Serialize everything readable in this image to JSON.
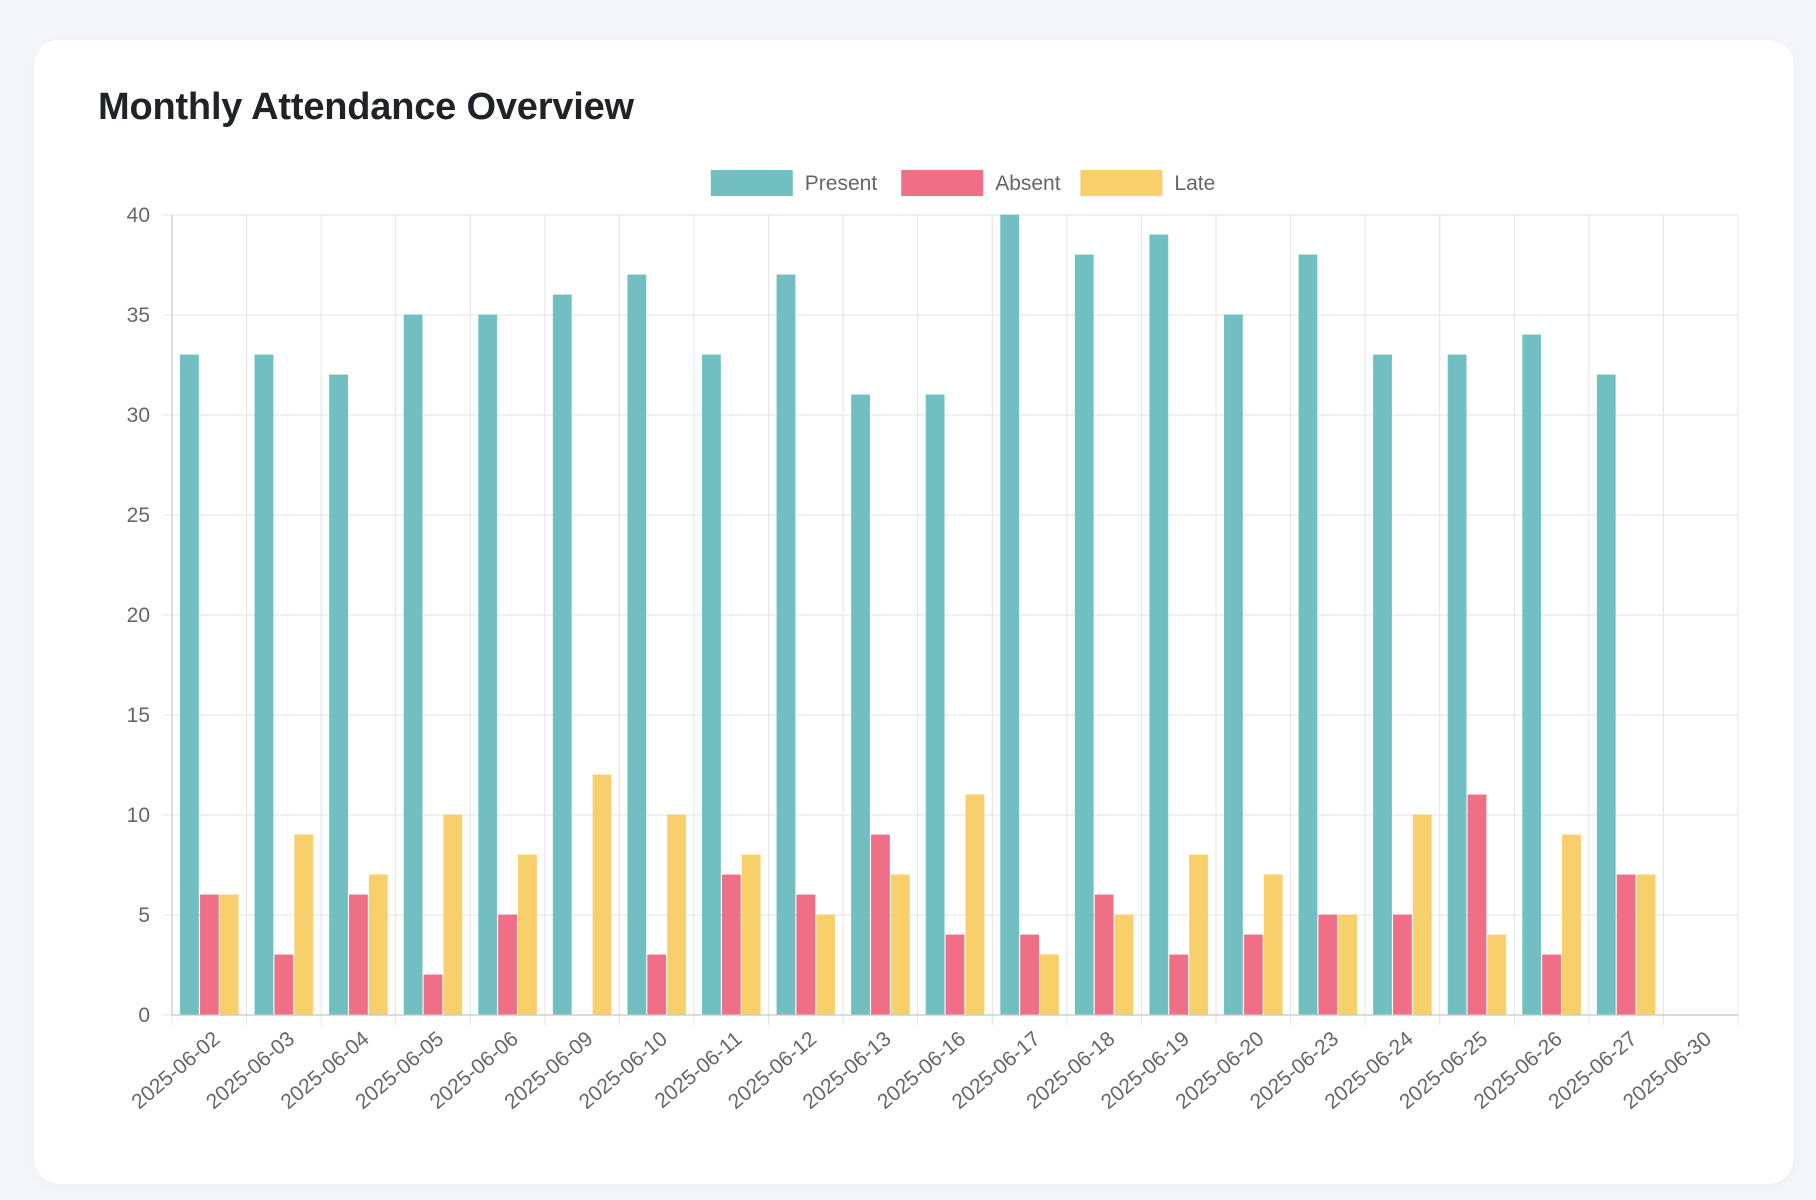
{
  "card": {
    "title": "Monthly Attendance Overview"
  },
  "chart_data": {
    "type": "bar",
    "title": "Monthly Attendance Overview",
    "categories": [
      "2025-06-02",
      "2025-06-03",
      "2025-06-04",
      "2025-06-05",
      "2025-06-06",
      "2025-06-09",
      "2025-06-10",
      "2025-06-11",
      "2025-06-12",
      "2025-06-13",
      "2025-06-16",
      "2025-06-17",
      "2025-06-18",
      "2025-06-19",
      "2025-06-20",
      "2025-06-23",
      "2025-06-24",
      "2025-06-25",
      "2025-06-26",
      "2025-06-27",
      "2025-06-30"
    ],
    "series": [
      {
        "name": "Present",
        "color": "#72bfc2",
        "values": [
          33,
          33,
          32,
          35,
          35,
          36,
          37,
          33,
          37,
          31,
          31,
          40,
          38,
          39,
          35,
          38,
          33,
          33,
          34,
          32,
          0
        ]
      },
      {
        "name": "Absent",
        "color": "#ee6f86",
        "values": [
          6,
          3,
          6,
          2,
          5,
          0,
          3,
          7,
          6,
          9,
          4,
          4,
          6,
          3,
          4,
          5,
          5,
          11,
          3,
          7,
          0
        ]
      },
      {
        "name": "Late",
        "color": "#f7cf6b",
        "values": [
          6,
          9,
          7,
          10,
          8,
          12,
          10,
          8,
          5,
          7,
          11,
          3,
          5,
          8,
          7,
          5,
          10,
          4,
          9,
          7,
          0
        ]
      }
    ],
    "ylim": [
      0,
      40
    ],
    "yticks": [
      0,
      5,
      10,
      15,
      20,
      25,
      30,
      35,
      40
    ],
    "xlabel": "",
    "ylabel": "",
    "grid": true,
    "legend_position": "top"
  }
}
